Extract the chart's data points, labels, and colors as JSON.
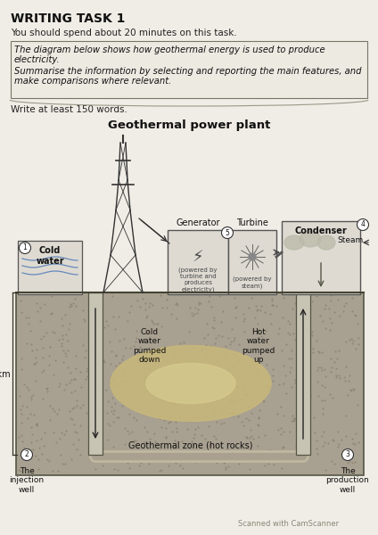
{
  "title": "WRITING TASK 1",
  "subtitle": "You should spend about 20 minutes on this task.",
  "box_line1": "The diagram below shows how geothermal energy is used to produce",
  "box_line2": "electricity.",
  "box_line3": "Summarise the information by selecting and reporting the main features, and",
  "box_line4": "make comparisons where relevant.",
  "write_text": "Write at least 150 words.",
  "diagram_title": "Geothermal power plant",
  "scanner_text": "Scanned with CamScanner",
  "page_bg": "#f0ede6",
  "ground_fill": "#a89880",
  "ground_edge": "#555544",
  "well_fill": "#d0ccbf",
  "glow_fill": "#c8ba8a",
  "box_fill": "#e8e4d8",
  "surface_fill": "#e0ddd5"
}
